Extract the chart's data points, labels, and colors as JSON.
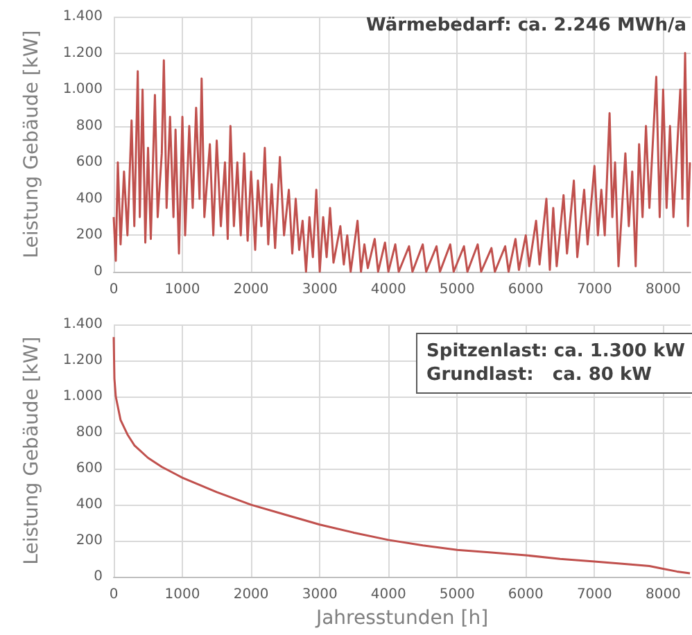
{
  "chart_data": [
    {
      "type": "line",
      "ylabel": "Leistung Gebäude [kW]",
      "annotations": [
        "Wärmebedarf: ca. 2.246 MWh/a"
      ],
      "xlim": [
        0,
        8400
      ],
      "ylim": [
        0,
        1400
      ],
      "xticks": [
        0,
        1000,
        2000,
        3000,
        4000,
        5000,
        6000,
        7000,
        {
          "value": 8000,
          "label": "8000"
        }
      ],
      "yticks": [
        0,
        200,
        400,
        600,
        800,
        {
          "value": 1000,
          "label": "1.000"
        },
        {
          "value": 1200,
          "label": "1.200"
        },
        {
          "value": 1400,
          "label": "1.400"
        }
      ],
      "grid": true,
      "marker": "none",
      "line_style": "solid",
      "x": [
        0,
        30,
        60,
        100,
        150,
        200,
        260,
        300,
        350,
        380,
        420,
        460,
        500,
        540,
        600,
        640,
        700,
        730,
        770,
        820,
        870,
        900,
        950,
        1000,
        1040,
        1100,
        1150,
        1200,
        1250,
        1280,
        1320,
        1400,
        1450,
        1500,
        1560,
        1620,
        1660,
        1700,
        1750,
        1800,
        1850,
        1900,
        1950,
        2000,
        2060,
        2100,
        2150,
        2200,
        2250,
        2300,
        2350,
        2420,
        2480,
        2550,
        2600,
        2650,
        2700,
        2750,
        2800,
        2850,
        2900,
        2950,
        3000,
        3050,
        3100,
        3150,
        3200,
        3300,
        3350,
        3400,
        3450,
        3550,
        3600,
        3650,
        3700,
        3800,
        3850,
        3950,
        4000,
        4100,
        4150,
        4300,
        4350,
        4500,
        4550,
        4700,
        4750,
        4900,
        4950,
        5100,
        5150,
        5300,
        5350,
        5500,
        5550,
        5700,
        5750,
        5850,
        5900,
        6000,
        6050,
        6150,
        6200,
        6300,
        6350,
        6400,
        6450,
        6550,
        6600,
        6700,
        6750,
        6850,
        6900,
        7000,
        7050,
        7100,
        7150,
        7220,
        7260,
        7300,
        7350,
        7450,
        7500,
        7550,
        7600,
        7650,
        7700,
        7750,
        7800,
        7900,
        7950,
        8000,
        8050,
        8100,
        8150,
        8250,
        8280,
        8320,
        8360,
        8390
      ],
      "series": [
        {
          "color": "#c0504d",
          "values": [
            300,
            60,
            600,
            150,
            550,
            200,
            830,
            250,
            1100,
            300,
            1000,
            160,
            680,
            180,
            970,
            300,
            650,
            1160,
            350,
            850,
            300,
            780,
            100,
            850,
            200,
            800,
            350,
            900,
            400,
            1060,
            300,
            700,
            200,
            720,
            250,
            600,
            180,
            800,
            250,
            600,
            200,
            650,
            170,
            550,
            120,
            500,
            250,
            680,
            150,
            480,
            130,
            630,
            200,
            450,
            100,
            400,
            120,
            280,
            0,
            300,
            80,
            450,
            0,
            300,
            80,
            350,
            50,
            250,
            40,
            200,
            0,
            280,
            0,
            150,
            20,
            180,
            0,
            160,
            0,
            150,
            0,
            140,
            0,
            150,
            0,
            140,
            0,
            150,
            0,
            140,
            0,
            150,
            0,
            130,
            0,
            140,
            0,
            180,
            10,
            200,
            30,
            280,
            40,
            400,
            10,
            350,
            30,
            420,
            100,
            500,
            80,
            450,
            150,
            580,
            200,
            450,
            200,
            870,
            300,
            600,
            30,
            650,
            250,
            550,
            30,
            700,
            300,
            800,
            350,
            1070,
            300,
            1000,
            350,
            800,
            300,
            1000,
            400,
            1200,
            250,
            600
          ]
        }
      ]
    },
    {
      "type": "line",
      "xlabel": "Jahresstunden [h]",
      "ylabel": "Leistung Gebäude [kW]",
      "annotations": [
        "Spitzenlast: ca. 1.300 kW",
        "Grundlast:   ca. 80 kW"
      ],
      "xlim": [
        0,
        8400
      ],
      "ylim": [
        0,
        1400
      ],
      "xticks": [
        0,
        1000,
        2000,
        3000,
        4000,
        5000,
        6000,
        7000,
        {
          "value": 8000,
          "label": "8000"
        }
      ],
      "yticks": [
        0,
        200,
        400,
        600,
        800,
        {
          "value": 1000,
          "label": "1.000"
        },
        {
          "value": 1200,
          "label": "1.200"
        },
        {
          "value": 1400,
          "label": "1.400"
        }
      ],
      "grid": true,
      "marker": "none",
      "line_style": "solid",
      "x": [
        0,
        10,
        30,
        100,
        200,
        300,
        500,
        700,
        1000,
        1500,
        2000,
        2500,
        3000,
        3500,
        4000,
        4500,
        5000,
        5500,
        6000,
        6500,
        7000,
        7500,
        7800,
        8000,
        8200,
        8390
      ],
      "series": [
        {
          "color": "#c0504d",
          "values": [
            1330,
            1100,
            1000,
            870,
            790,
            730,
            660,
            610,
            550,
            470,
            400,
            345,
            290,
            245,
            205,
            175,
            150,
            135,
            120,
            100,
            85,
            70,
            60,
            45,
            30,
            20
          ]
        }
      ]
    }
  ]
}
